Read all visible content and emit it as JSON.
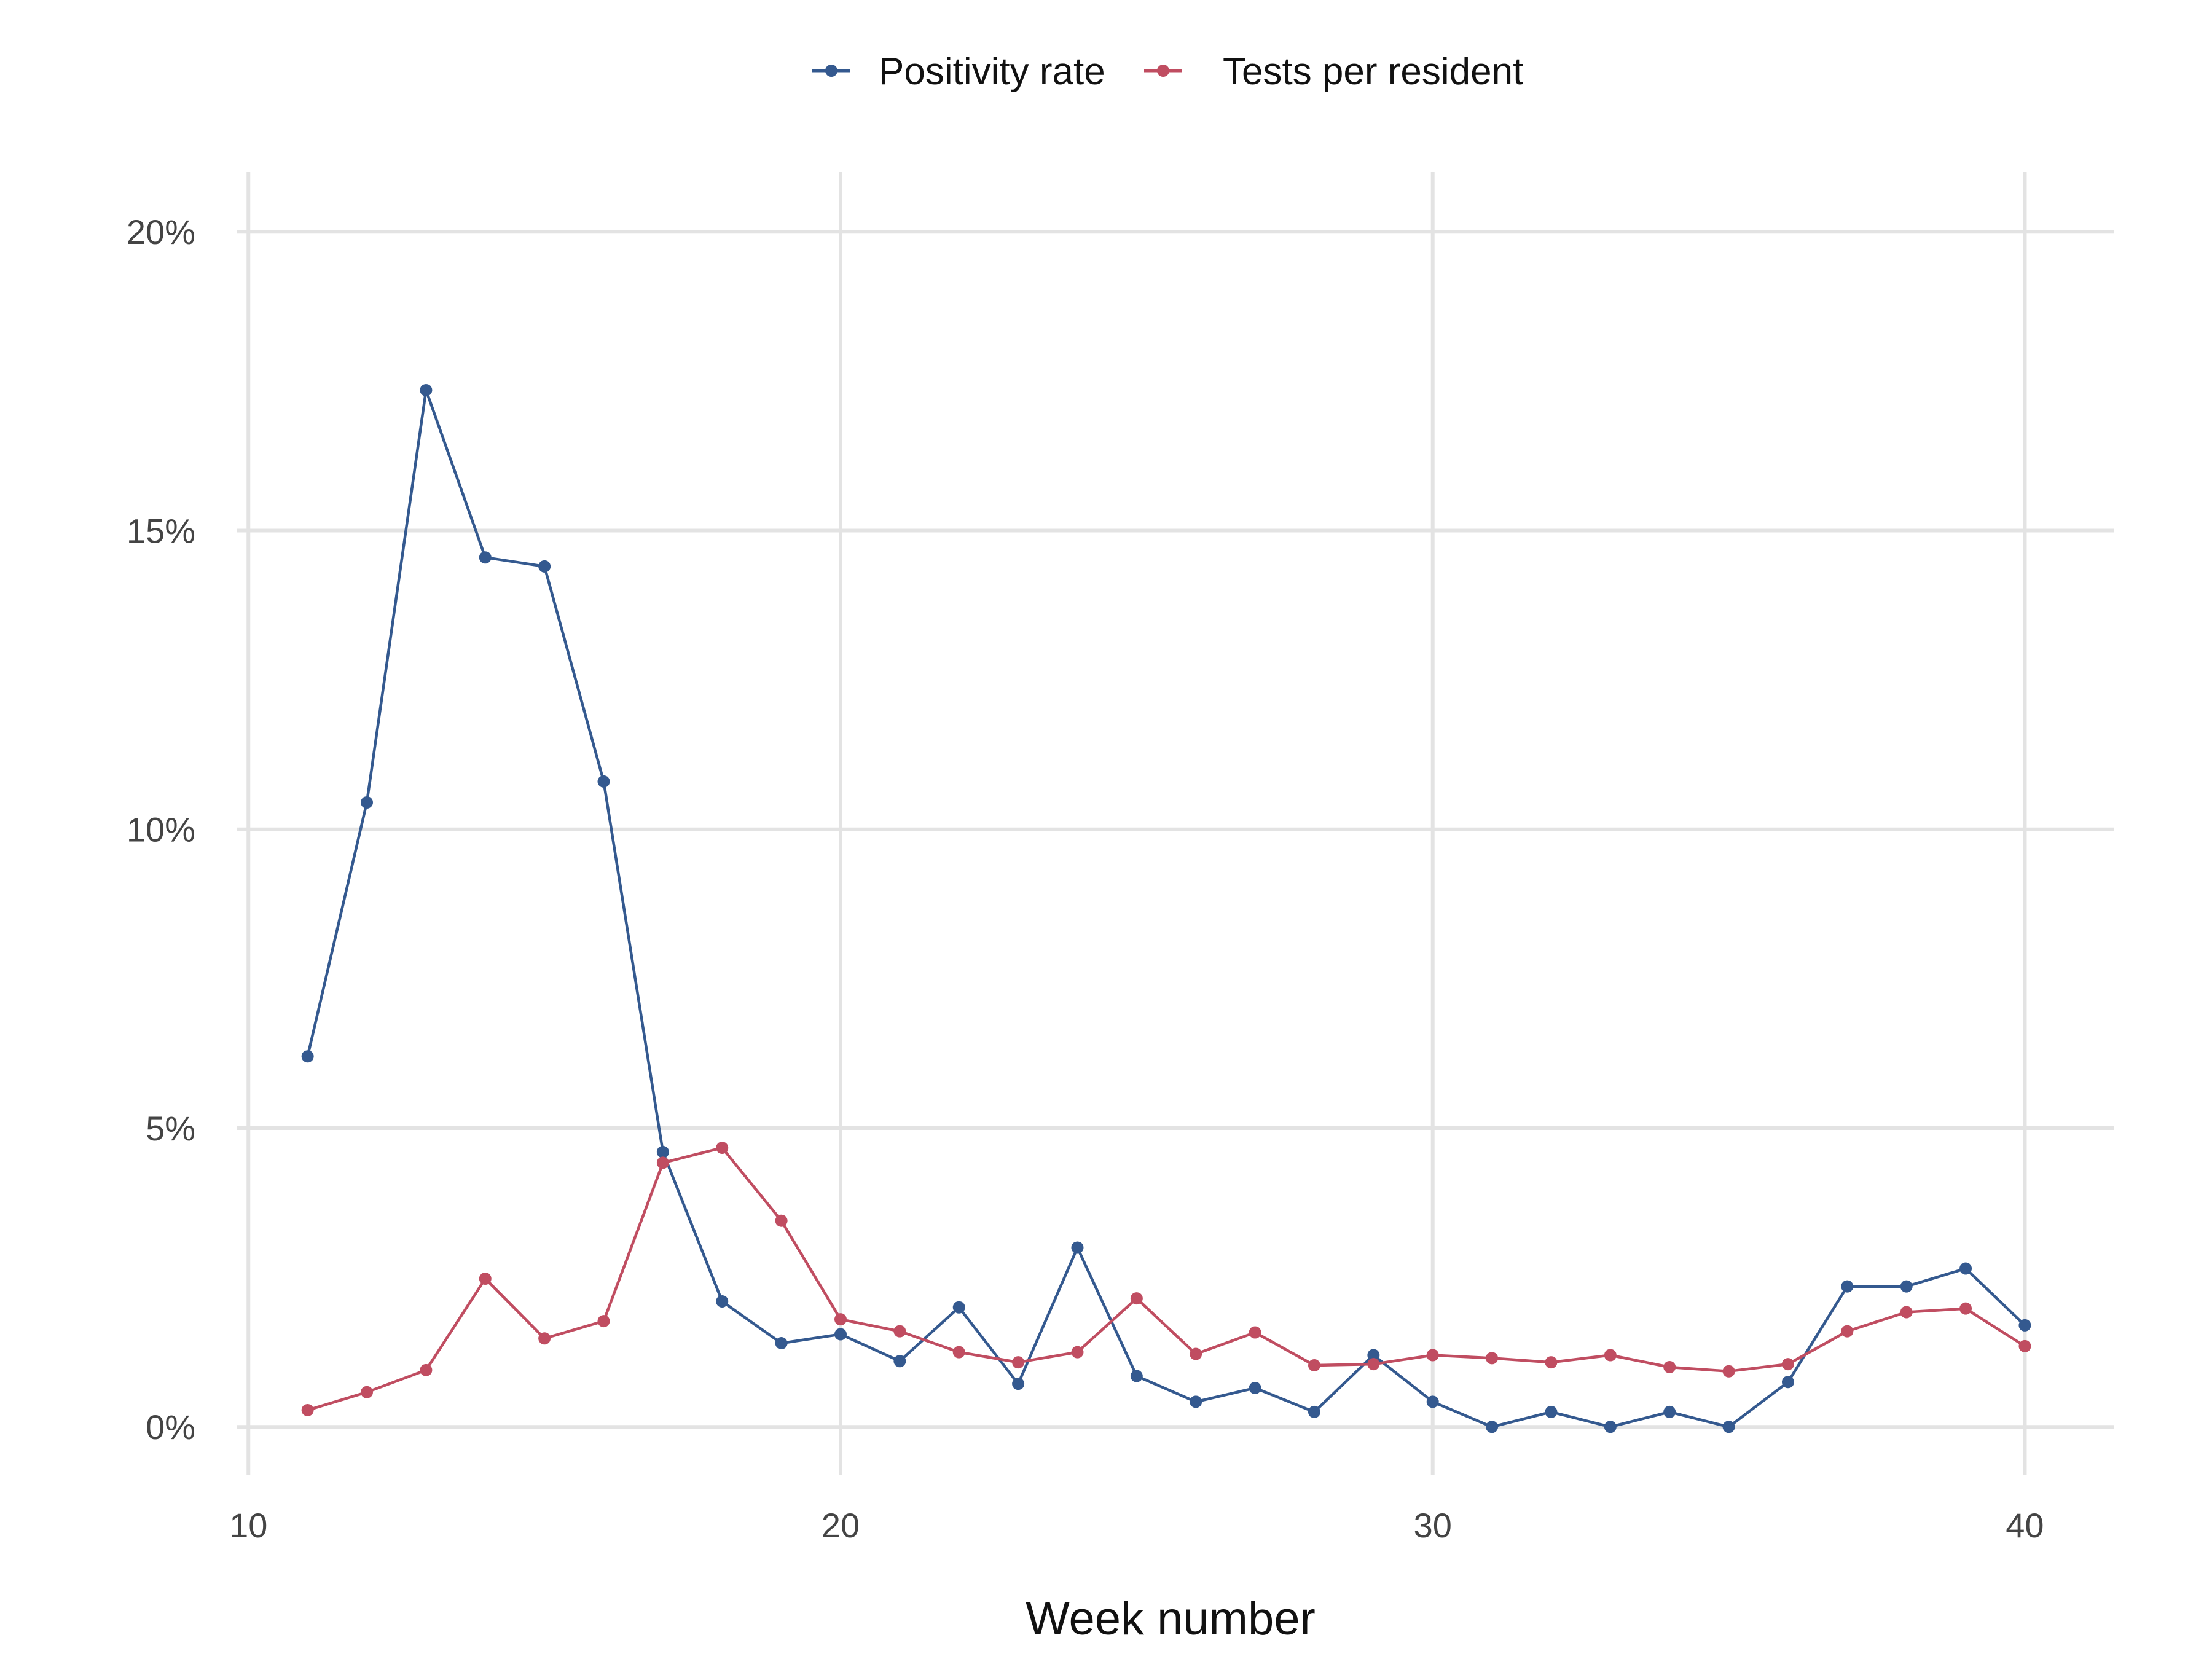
{
  "chart_data": {
    "type": "line",
    "title": "",
    "xlabel": "Week number",
    "ylabel": "",
    "xlim": [
      9.8,
      41.5
    ],
    "ylim": [
      -0.8,
      21.0
    ],
    "x_ticks": [
      10,
      20,
      30,
      40
    ],
    "x_tick_labels": [
      "10",
      "20",
      "30",
      "40"
    ],
    "y_ticks": [
      0,
      5,
      10,
      15,
      20
    ],
    "y_tick_labels": [
      "0%",
      "5%",
      "10%",
      "15%",
      "20%"
    ],
    "grid": true,
    "legend_position": "top",
    "series": [
      {
        "name": "Positivity rate",
        "color": "#34598f",
        "x": [
          11,
          12,
          13,
          14,
          15,
          16,
          17,
          18,
          19,
          20,
          21,
          22,
          23,
          24,
          25,
          26,
          27,
          28,
          29,
          30,
          31,
          32,
          33,
          34,
          35,
          36,
          37,
          38,
          39,
          40
        ],
        "values": [
          6.2,
          10.45,
          17.35,
          14.55,
          14.4,
          10.8,
          4.6,
          2.1,
          1.4,
          1.55,
          1.1,
          2.0,
          0.72,
          3.0,
          0.85,
          0.42,
          0.65,
          0.25,
          1.2,
          0.42,
          0.0,
          0.25,
          0.0,
          0.25,
          0.0,
          0.75,
          2.35,
          2.35,
          2.65,
          1.7
        ]
      },
      {
        "name": "Tests per resident",
        "color": "#c04d61",
        "x": [
          11,
          12,
          13,
          14,
          15,
          16,
          17,
          18,
          19,
          20,
          21,
          22,
          23,
          24,
          25,
          26,
          27,
          28,
          29,
          30,
          31,
          32,
          33,
          34,
          35,
          36,
          37,
          38,
          39,
          40
        ],
        "values": [
          0.28,
          0.58,
          0.95,
          2.48,
          1.48,
          1.77,
          4.42,
          4.67,
          3.45,
          1.8,
          1.6,
          1.25,
          1.08,
          1.25,
          2.15,
          1.22,
          1.58,
          1.03,
          1.05,
          1.2,
          1.15,
          1.08,
          1.2,
          1.0,
          0.93,
          1.05,
          1.6,
          1.92,
          1.98,
          1.35
        ]
      }
    ]
  }
}
